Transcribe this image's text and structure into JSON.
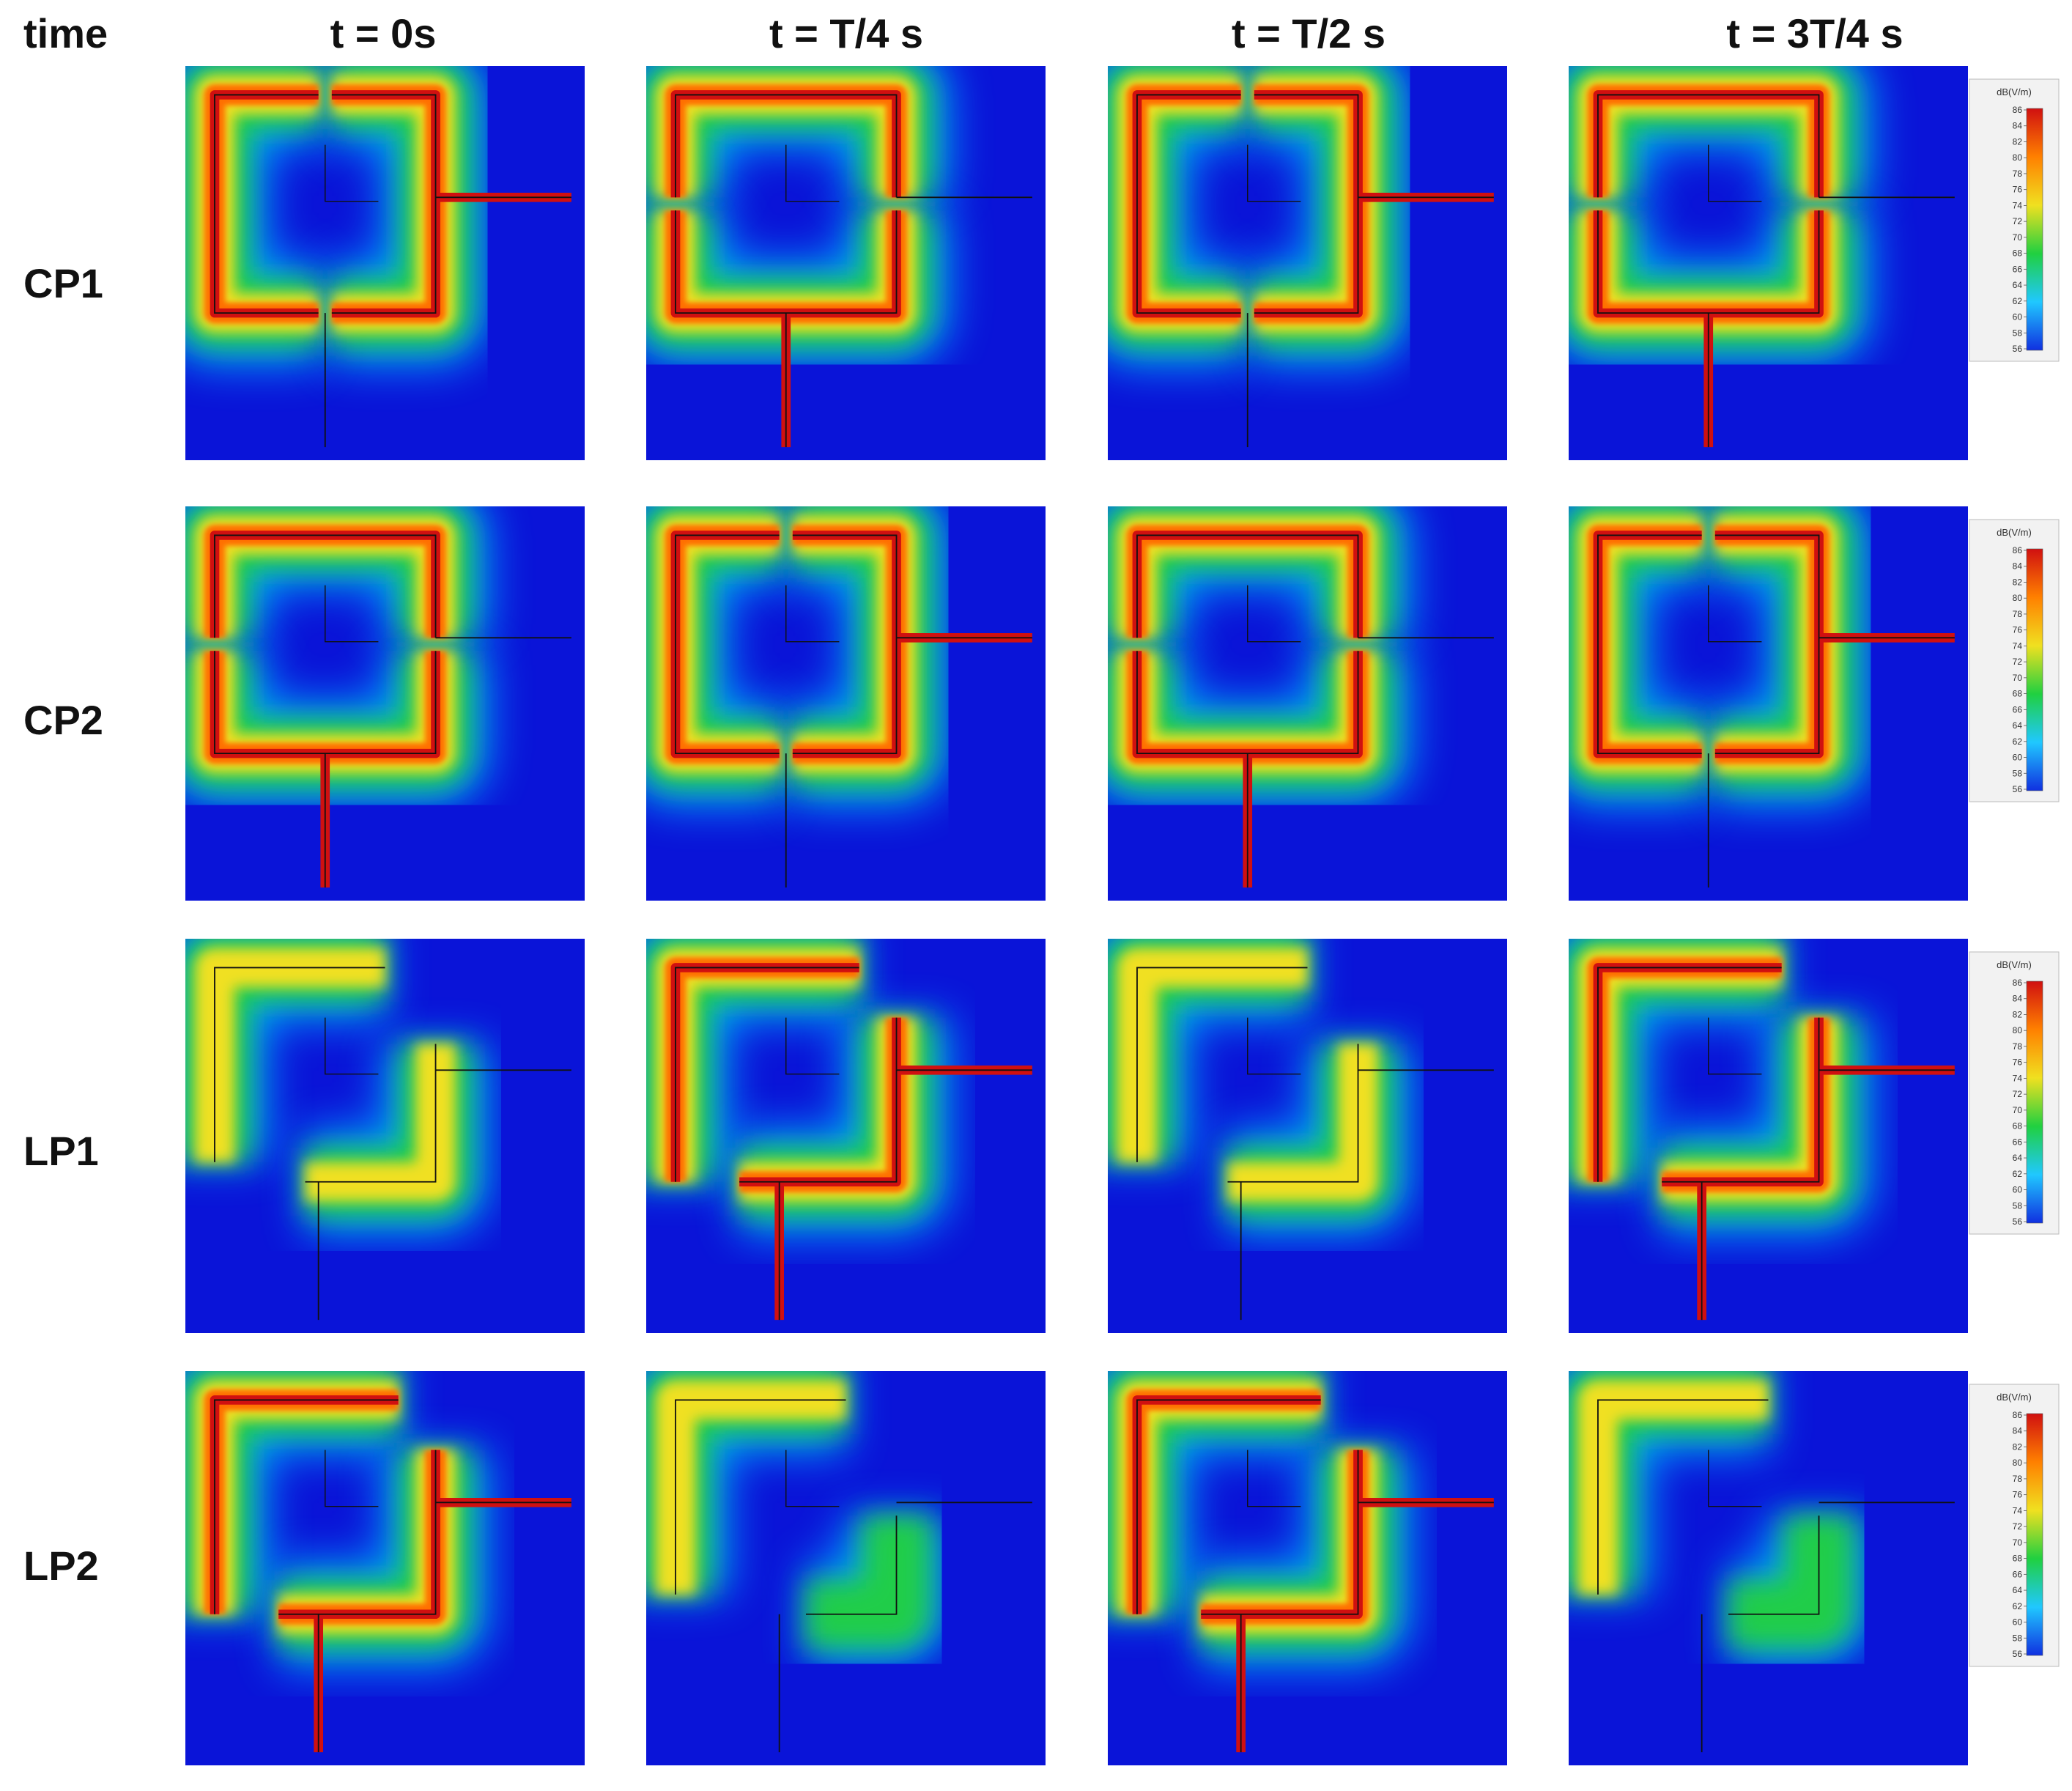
{
  "header": {
    "corner": "time",
    "columns": [
      "t = 0s",
      "t = T/4 s",
      "t = T/2 s",
      "t = 3T/4 s"
    ]
  },
  "rows": [
    "CP1",
    "CP2",
    "LP1",
    "LP2"
  ],
  "colorbar": {
    "title": "dB(V/m)",
    "ticks": [
      "86",
      "84",
      "82",
      "80",
      "78",
      "76",
      "74",
      "72",
      "70",
      "68",
      "66",
      "64",
      "62",
      "60",
      "58",
      "56"
    ]
  }
}
